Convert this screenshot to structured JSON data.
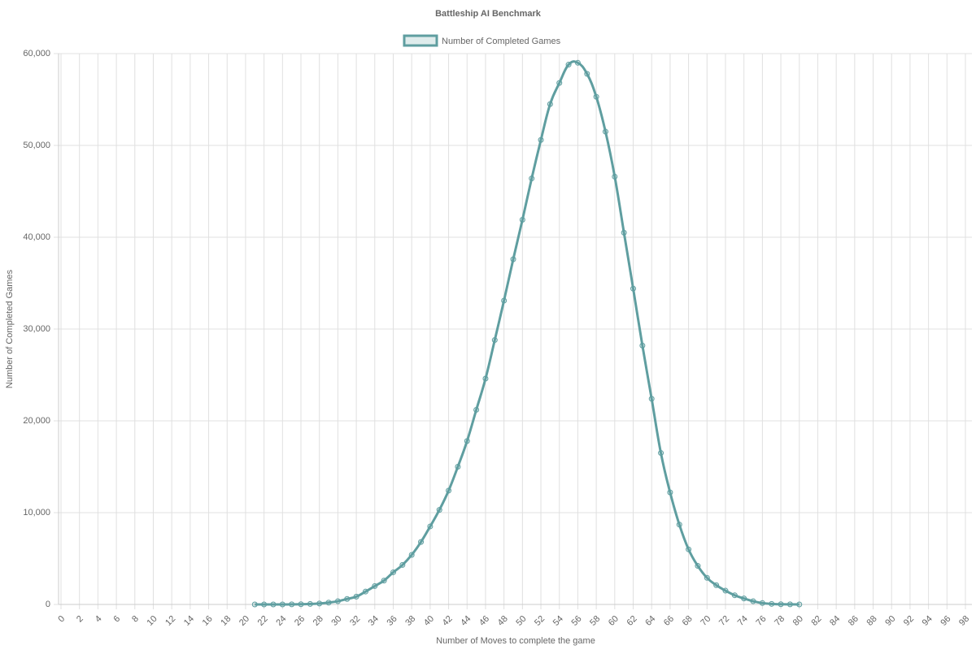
{
  "chart_data": {
    "type": "line",
    "title": "Battleship AI Benchmark",
    "x_label": "Number of Moves to complete the game",
    "y_label": "Number of Completed Games",
    "legend_position": "top",
    "grid": true,
    "x": [
      21,
      22,
      23,
      24,
      25,
      26,
      27,
      28,
      29,
      30,
      31,
      32,
      33,
      34,
      35,
      36,
      37,
      38,
      39,
      40,
      41,
      42,
      43,
      44,
      45,
      46,
      47,
      48,
      49,
      50,
      51,
      52,
      53,
      54,
      55,
      56,
      57,
      58,
      59,
      60,
      61,
      62,
      63,
      64,
      65,
      66,
      67,
      68,
      69,
      70,
      71,
      72,
      73,
      74,
      75,
      76,
      77,
      78,
      79,
      80
    ],
    "series": [
      {
        "name": "Number of Completed Games",
        "color": "#5f9ea0",
        "values": [
          0,
          0,
          0,
          0,
          10,
          20,
          50,
          100,
          200,
          350,
          600,
          850,
          1400,
          2000,
          2600,
          3500,
          4300,
          5400,
          6800,
          8500,
          10300,
          12400,
          15000,
          17800,
          21200,
          24600,
          28800,
          33100,
          37600,
          41900,
          46400,
          50600,
          54500,
          56800,
          58800,
          59000,
          57800,
          55300,
          51500,
          46600,
          40500,
          34400,
          28200,
          22400,
          16500,
          12200,
          8700,
          6000,
          4200,
          2900,
          2100,
          1500,
          1000,
          650,
          350,
          150,
          60,
          20,
          10,
          0
        ]
      }
    ],
    "xlim": [
      0,
      98
    ],
    "xticks": [
      0,
      2,
      4,
      6,
      8,
      10,
      12,
      14,
      16,
      18,
      20,
      22,
      24,
      26,
      28,
      30,
      32,
      34,
      36,
      38,
      40,
      42,
      44,
      46,
      48,
      50,
      52,
      54,
      56,
      58,
      60,
      62,
      64,
      66,
      68,
      70,
      72,
      74,
      76,
      78,
      80,
      82,
      84,
      86,
      88,
      90,
      92,
      94,
      96,
      98
    ],
    "ylim": [
      0,
      60000
    ],
    "yticks": [
      0,
      {
        "value": 10000,
        "label": "10,000"
      },
      {
        "value": 20000,
        "label": "20,000"
      },
      {
        "value": 30000,
        "label": "30,000"
      },
      {
        "value": 40000,
        "label": "40,000"
      },
      {
        "value": 50000,
        "label": "50,000"
      },
      {
        "value": 60000,
        "label": "60,000"
      }
    ]
  }
}
